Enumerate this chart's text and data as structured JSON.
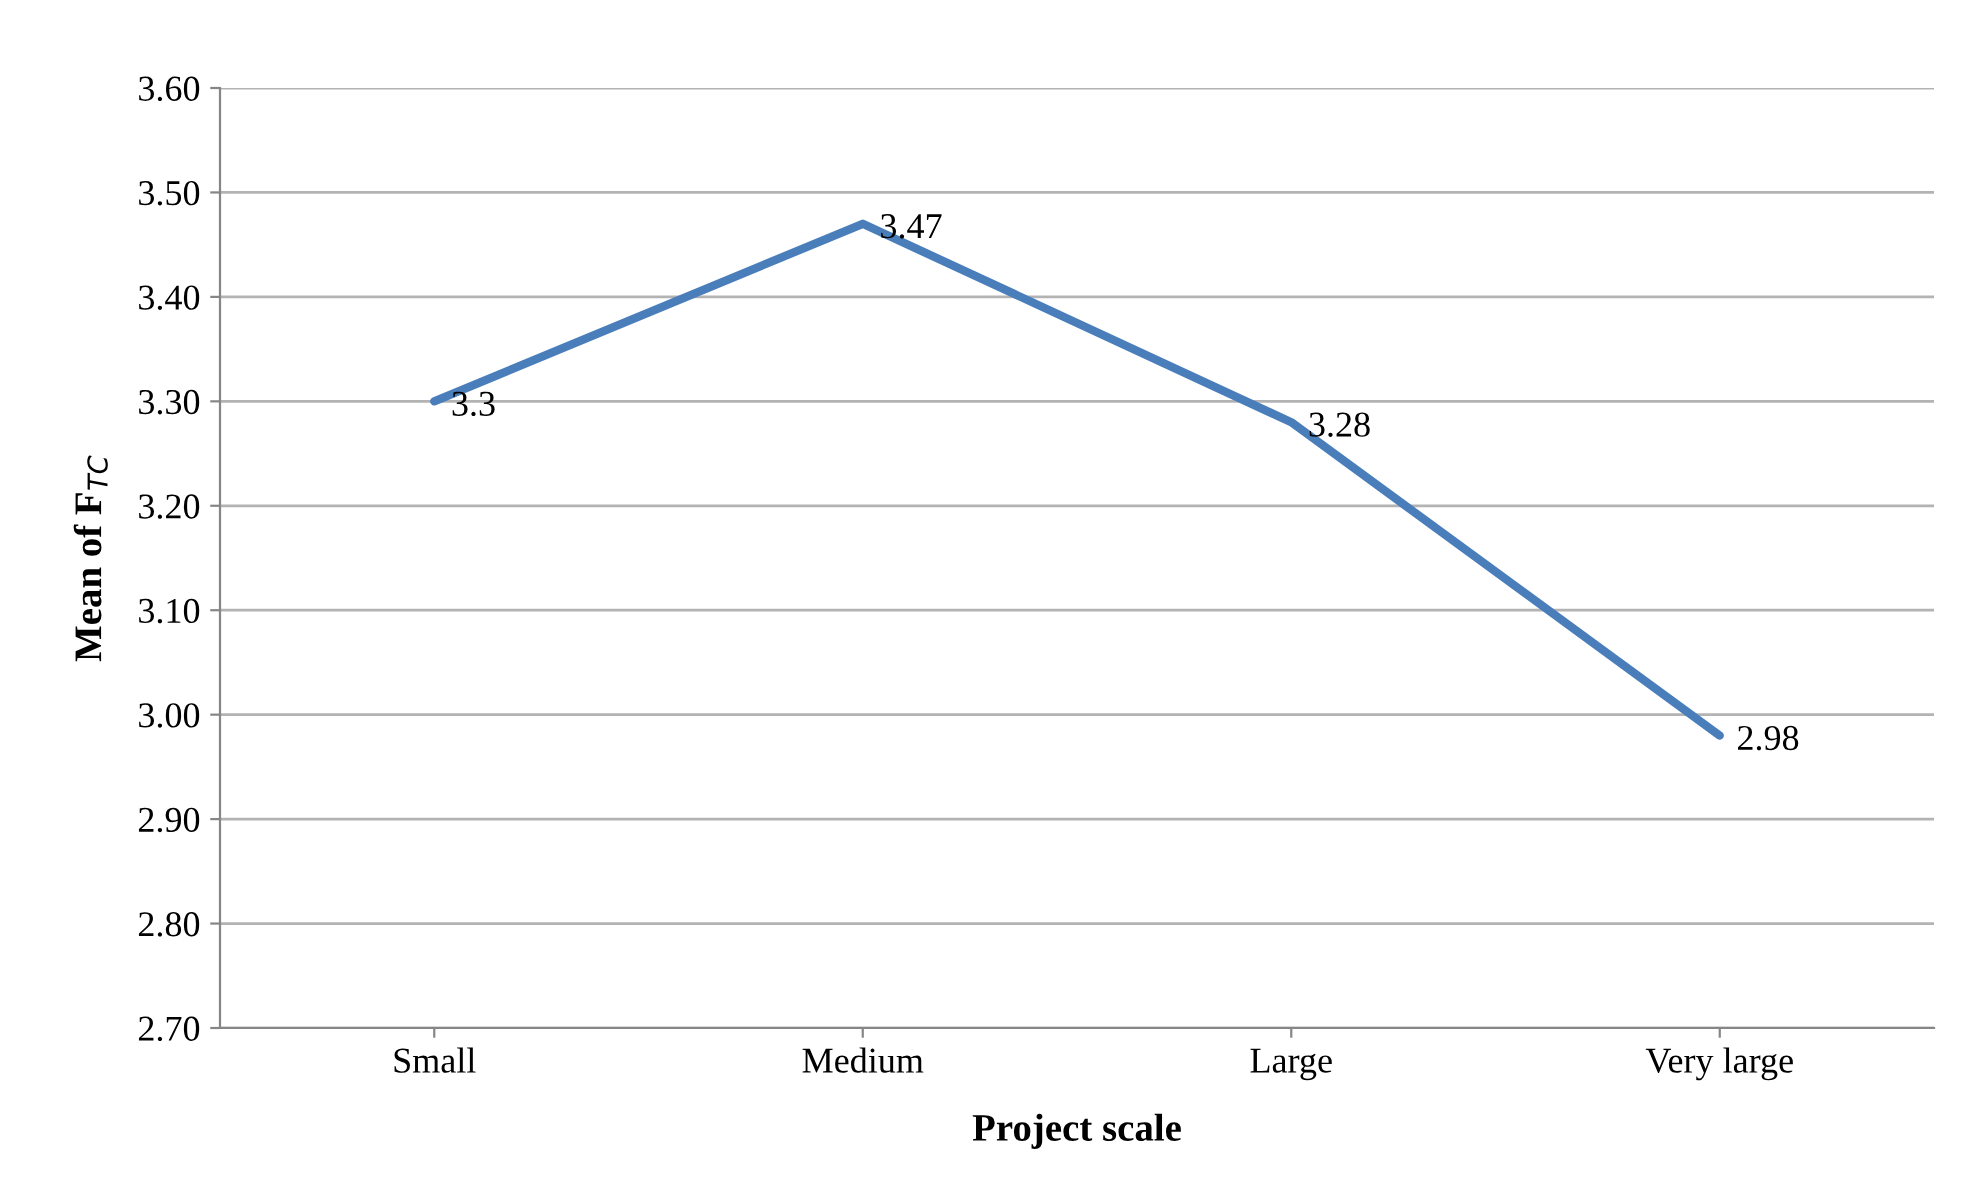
{
  "chart_data": {
    "type": "line",
    "xlabel": "Project scale",
    "ylabel": "Mean of F$_{TC}$",
    "categories": [
      "Small",
      "Medium",
      "Large",
      "Very large"
    ],
    "series": [
      {
        "color": "#4a7ebb",
        "values": [
          3.3,
          3.47,
          3.28,
          2.98
        ]
      }
    ],
    "ylim": [
      2.7,
      3.6
    ],
    "yticks": [
      {
        "value": 2.7,
        "label": "2.70"
      },
      {
        "value": 2.8,
        "label": "2.80"
      },
      {
        "value": 2.9,
        "label": "2.90"
      },
      {
        "value": 3.0,
        "label": "3.00"
      },
      {
        "value": 3.1,
        "label": "3.10"
      },
      {
        "value": 3.2,
        "label": "3.20"
      },
      {
        "value": 3.3,
        "label": "3.30"
      },
      {
        "value": 3.4,
        "label": "3.40"
      },
      {
        "value": 3.5,
        "label": "3.50"
      },
      {
        "value": 3.6,
        "label": "3.60"
      }
    ],
    "grid": "y",
    "data_labels": true,
    "marker": "none",
    "line_style": "solid"
  }
}
